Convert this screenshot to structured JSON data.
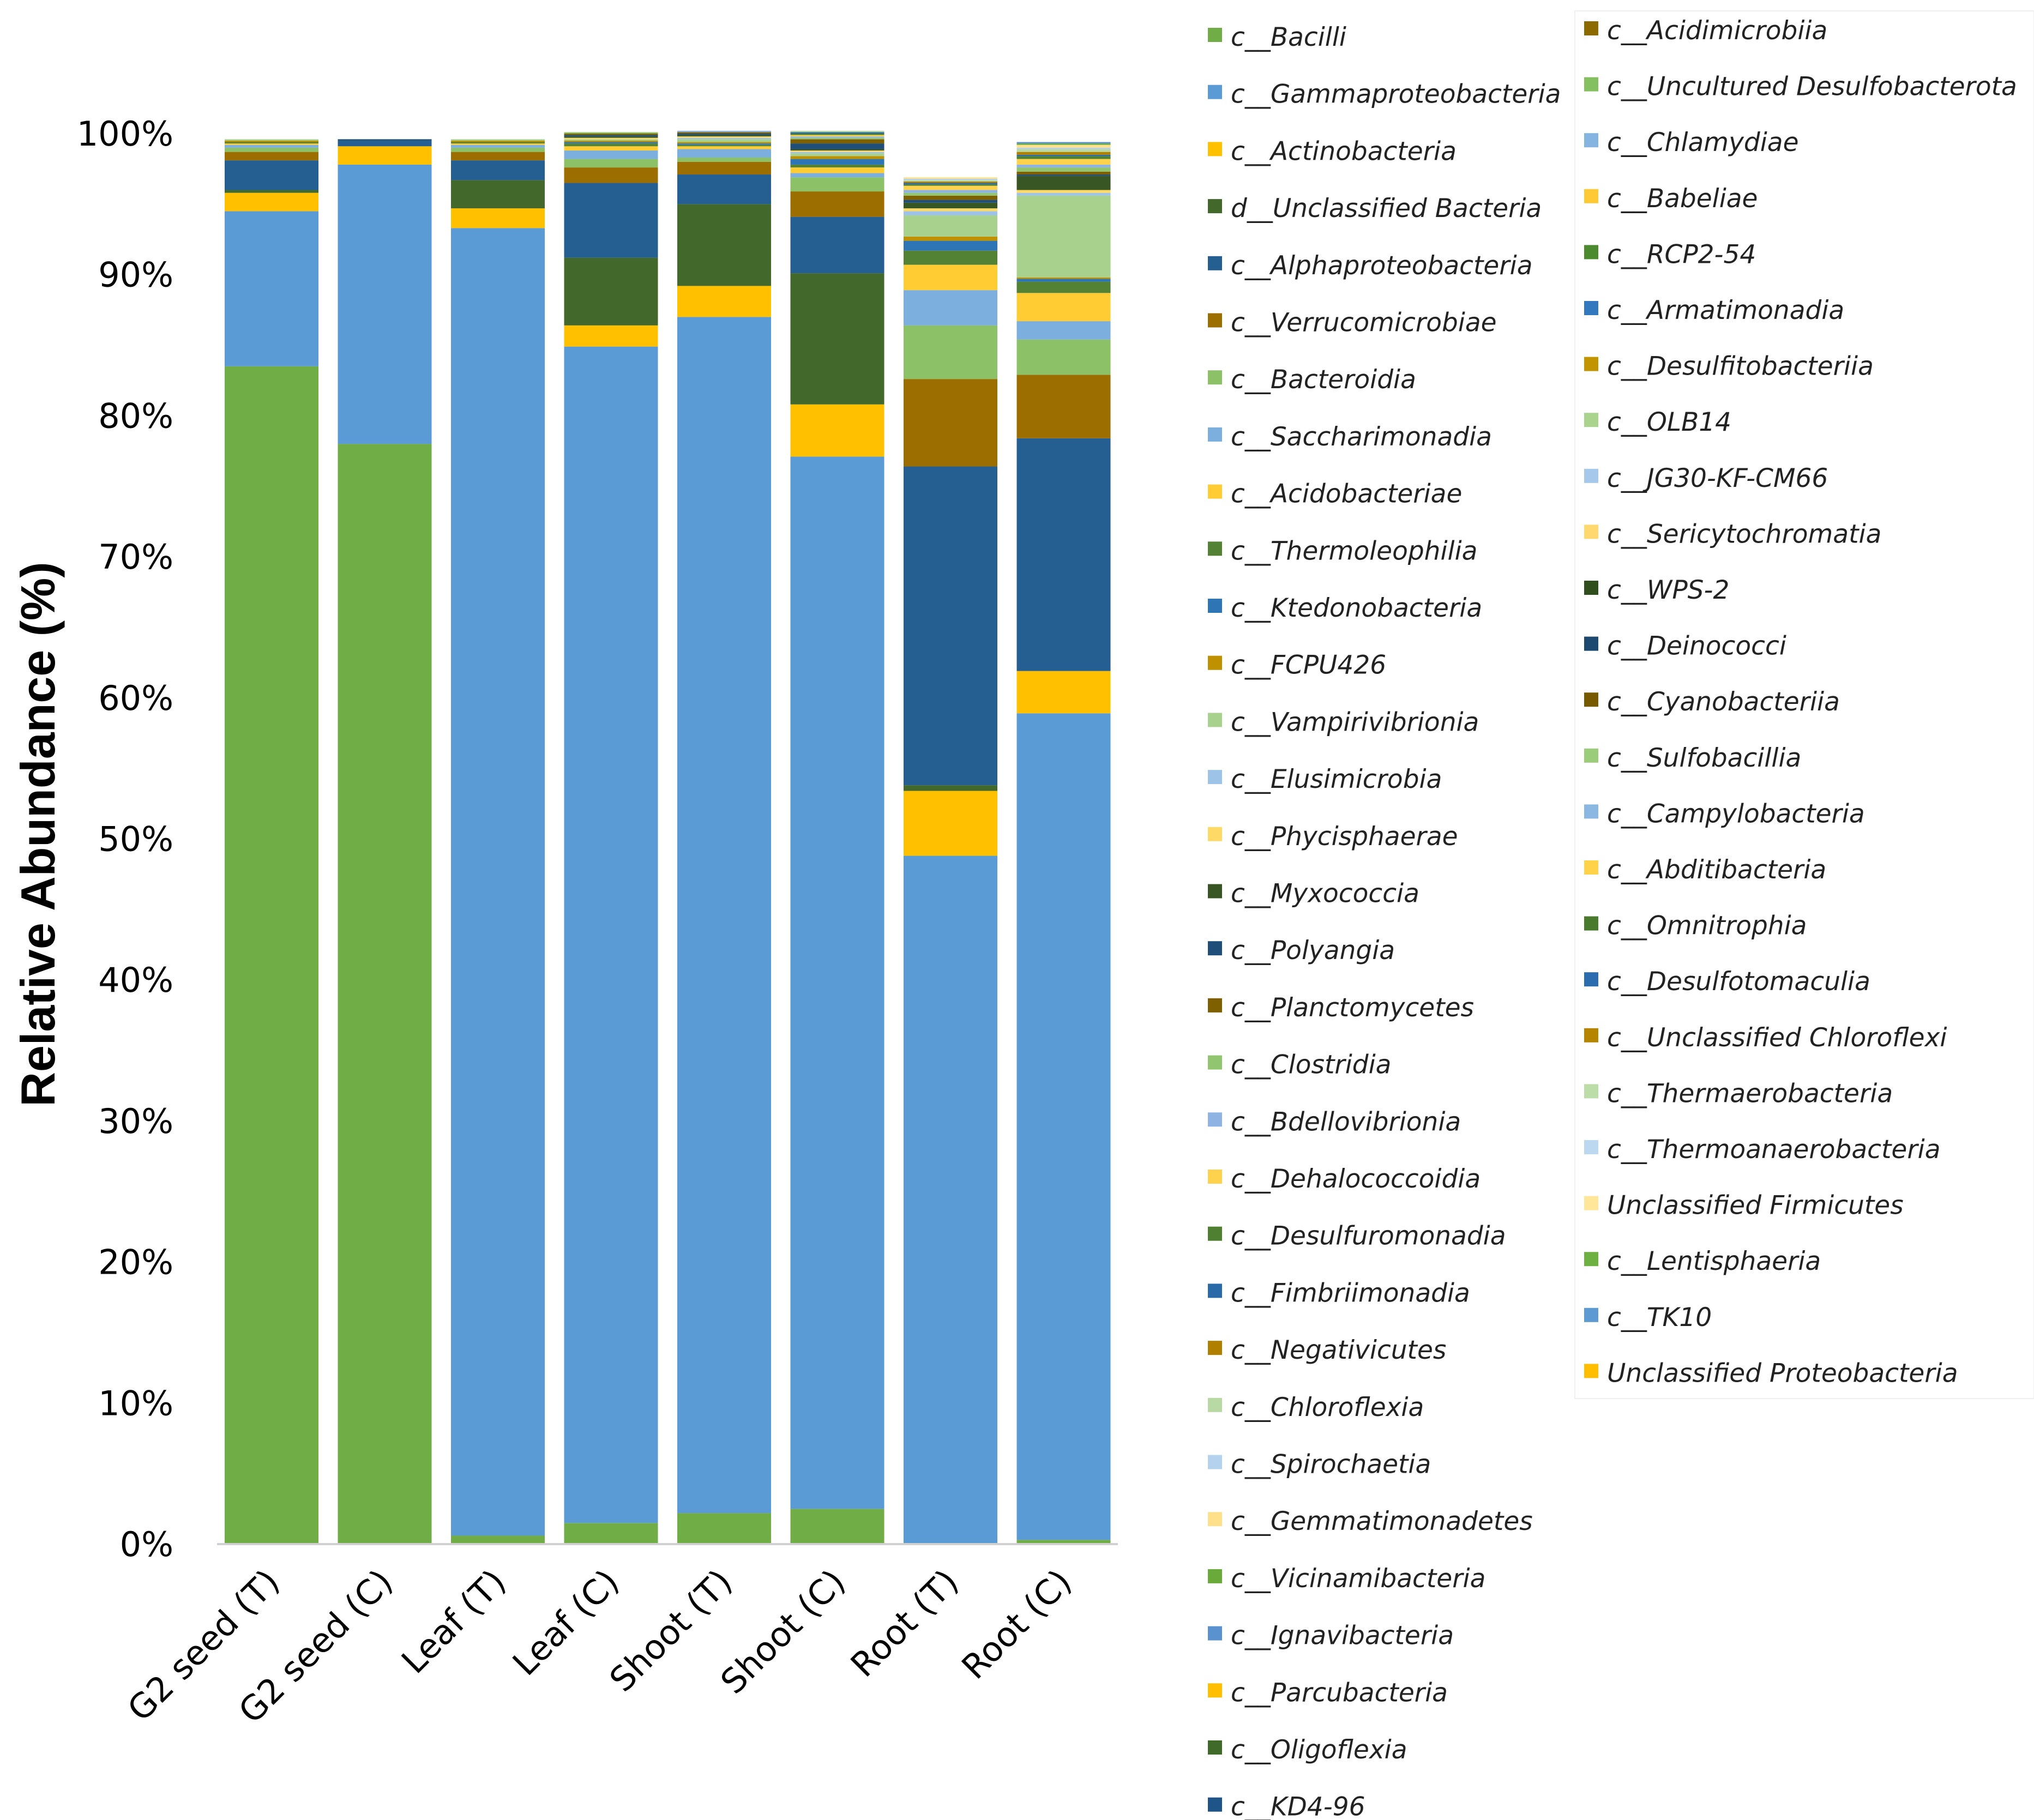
{
  "chart_data": {
    "type": "bar",
    "stacked": true,
    "ylabel": "Relative Abundance (%)",
    "ylim": [
      0,
      100
    ],
    "yticks": [
      "0%",
      "10%",
      "20%",
      "30%",
      "40%",
      "50%",
      "60%",
      "70%",
      "80%",
      "90%",
      "100%"
    ],
    "categories": [
      "G2 seed (T)",
      "G2 seed (C)",
      "Leaf (T)",
      "Leaf (C)",
      "Shoot (T)",
      "Shoot (C)",
      "Root (T)",
      "Root (C)"
    ],
    "series": [
      {
        "name": "c__Bacilli",
        "color": "#70ad47",
        "values": [
          83.5,
          78.0,
          0.6,
          1.5,
          2.2,
          2.5,
          0,
          0.3
        ]
      },
      {
        "name": "c__Gammaproteobacteria",
        "color": "#5b9bd5",
        "values": [
          11.0,
          19.8,
          92.7,
          83.4,
          84.8,
          74.6,
          48.8,
          58.6
        ]
      },
      {
        "name": "c__Actinobacteria",
        "color": "#ffc000",
        "values": [
          1.3,
          1.3,
          1.4,
          1.5,
          2.2,
          3.7,
          4.6,
          3.0
        ]
      },
      {
        "name": "d__Unclassified Bacteria",
        "color": "#43682b",
        "values": [
          0.2,
          0,
          2.0,
          4.8,
          5.8,
          9.3,
          0.4,
          0
        ]
      },
      {
        "name": "c__Alphaproteobacteria",
        "color": "#255e91",
        "values": [
          2.1,
          0.4,
          1.4,
          5.3,
          2.1,
          4.0,
          22.6,
          16.5
        ]
      },
      {
        "name": "c__Verrucomicrobiae",
        "color": "#9c6e00",
        "values": [
          0.6,
          0,
          0.6,
          1.1,
          0.9,
          1.8,
          6.2,
          4.5
        ]
      },
      {
        "name": "c__Bacteroidia",
        "color": "#8cc168",
        "values": [
          0.3,
          0,
          0.3,
          0.6,
          0.3,
          1.0,
          3.8,
          2.5
        ]
      },
      {
        "name": "c__Saccharimonadia",
        "color": "#7cafdd",
        "values": [
          0.2,
          0,
          0.2,
          0.6,
          0.6,
          0.3,
          2.5,
          1.3
        ]
      },
      {
        "name": "c__Acidobacteriae",
        "color": "#ffcd33",
        "values": [
          0.1,
          0,
          0.1,
          0.3,
          0.2,
          0.4,
          1.8,
          2.0
        ]
      },
      {
        "name": "c__Thermoleophilia",
        "color": "#548235",
        "values": [
          0.1,
          0,
          0.1,
          0.2,
          0.1,
          0.2,
          1.0,
          0.8
        ]
      },
      {
        "name": "c__Ktedonobacteria",
        "color": "#2e75b6",
        "values": [
          0,
          0,
          0,
          0.1,
          0.1,
          0.4,
          0.7,
          0.2
        ]
      },
      {
        "name": "c__FCPU426",
        "color": "#bf9000",
        "values": [
          0.1,
          0,
          0.1,
          0.1,
          0.1,
          0.2,
          0.3,
          0.1
        ]
      },
      {
        "name": "c__Vampirivibrionia",
        "color": "#a9d18e",
        "values": [
          0.1,
          0,
          0.1,
          0.1,
          0.2,
          0.2,
          1.5,
          5.8
        ]
      },
      {
        "name": "c__Elusimicrobia",
        "color": "#9dc3e6",
        "values": [
          0,
          0,
          0,
          0,
          0.1,
          0.1,
          0.3,
          0.2
        ]
      },
      {
        "name": "c__Phycisphaerae",
        "color": "#ffd966",
        "values": [
          0,
          0,
          0,
          0.1,
          0.1,
          0.1,
          0.2,
          0.2
        ]
      },
      {
        "name": "c__Myxococcia",
        "color": "#375623",
        "values": [
          0,
          0,
          0,
          0.1,
          0.1,
          0.1,
          0.4,
          1.0
        ]
      },
      {
        "name": "c__Polyangia",
        "color": "#1f4e79",
        "values": [
          0,
          0.1,
          0,
          0.1,
          0.1,
          0.4,
          0.2,
          0.1
        ]
      },
      {
        "name": "c__Planctomycetes",
        "color": "#7f6000",
        "values": [
          0,
          0,
          0,
          0.1,
          0.1,
          0.3,
          0.3,
          0.2
        ]
      },
      {
        "name": "c__Clostridia",
        "color": "#92c56f",
        "values": [
          0,
          0,
          0,
          0.1,
          0,
          0.1,
          0.2,
          0.3
        ]
      },
      {
        "name": "c__Bdellovibrionia",
        "color": "#8fb4e3",
        "values": [
          0,
          0,
          0,
          0,
          0.1,
          0.1,
          0.2,
          0.2
        ]
      },
      {
        "name": "c__Dehalococcoidia",
        "color": "#ffd24d",
        "values": [
          0,
          0,
          0,
          0,
          0,
          0.1,
          0.3,
          0.4
        ]
      },
      {
        "name": "c__Desulfuromonadia",
        "color": "#4f7f31",
        "values": [
          0,
          0,
          0,
          0,
          0,
          0.1,
          0.1,
          0.2
        ]
      },
      {
        "name": "c__Fimbriimonadia",
        "color": "#2a6aa8",
        "values": [
          0,
          0,
          0,
          0,
          0,
          0.1,
          0.1,
          0.1
        ]
      },
      {
        "name": "c__Negativicutes",
        "color": "#b07f00",
        "values": [
          0,
          0,
          0,
          0,
          0,
          0,
          0.1,
          0.2
        ]
      },
      {
        "name": "c__Chloroflexia",
        "color": "#b8d9a3",
        "values": [
          0,
          0,
          0,
          0,
          0,
          0.1,
          0.1,
          0.2
        ]
      },
      {
        "name": "c__Spirochaetia",
        "color": "#b4d2ee",
        "values": [
          0,
          0,
          0,
          0,
          0,
          0,
          0.1,
          0.1
        ]
      },
      {
        "name": "c__Gemmatimonadetes",
        "color": "#ffe08a",
        "values": [
          0,
          0,
          0,
          0,
          0,
          0,
          0.1,
          0.2
        ]
      },
      {
        "name": "c__Vicinamibacteria",
        "color": "#6aaa3a",
        "values": [
          0,
          0,
          0,
          0,
          0,
          0,
          0,
          0.1
        ]
      },
      {
        "name": "c__Ignavibacteria",
        "color": "#5a92cf",
        "values": [
          0,
          0,
          0,
          0,
          0,
          0,
          0,
          0.1
        ]
      },
      {
        "name": "c__Parcubacteria",
        "color": "#ffbf00",
        "values": [
          0,
          0,
          0,
          0,
          0,
          0,
          0,
          0
        ]
      },
      {
        "name": "c__Oligoflexia",
        "color": "#3f6a2a",
        "values": [
          0,
          0,
          0,
          0,
          0,
          0,
          0,
          0
        ]
      },
      {
        "name": "c__KD4-96",
        "color": "#1f5488",
        "values": [
          0,
          0,
          0,
          0,
          0,
          0,
          0,
          0
        ]
      },
      {
        "name": "c__Acidimicrobiia",
        "color": "#8c6a00",
        "values": [
          0,
          0,
          0,
          0,
          0,
          0,
          0,
          0
        ]
      },
      {
        "name": "c__Uncultured Desulfobacterota",
        "color": "#84c060",
        "values": [
          0,
          0,
          0,
          0,
          0,
          0,
          0,
          0
        ]
      },
      {
        "name": "c__Chlamydiae",
        "color": "#86b4e0",
        "values": [
          0,
          0,
          0,
          0,
          0,
          0,
          0,
          0
        ]
      },
      {
        "name": "c__Babeliae",
        "color": "#ffc935",
        "values": [
          0,
          0,
          0,
          0,
          0,
          0,
          0,
          0
        ]
      },
      {
        "name": "c__RCP2-54",
        "color": "#4c8a30",
        "values": [
          0,
          0,
          0,
          0,
          0,
          0,
          0,
          0
        ]
      },
      {
        "name": "c__Armatimonadia",
        "color": "#3278be",
        "values": [
          0,
          0,
          0,
          0,
          0,
          0,
          0,
          0
        ]
      },
      {
        "name": "c__Desulfitobacteriia",
        "color": "#c29400",
        "values": [
          0,
          0,
          0,
          0,
          0,
          0,
          0,
          0
        ]
      },
      {
        "name": "c__OLB14",
        "color": "#aad48e",
        "values": [
          0,
          0,
          0,
          0,
          0,
          0,
          0,
          0
        ]
      },
      {
        "name": "c__JG30-KF-CM66",
        "color": "#a6c8ea",
        "values": [
          0,
          0,
          0,
          0,
          0,
          0,
          0,
          0
        ]
      },
      {
        "name": "c__Sericytochromatia",
        "color": "#ffd870",
        "values": [
          0,
          0,
          0,
          0,
          0,
          0,
          0,
          0
        ]
      },
      {
        "name": "c__WPS-2",
        "color": "#304d1e",
        "values": [
          0,
          0,
          0,
          0,
          0,
          0,
          0,
          0
        ]
      },
      {
        "name": "c__Deinococci",
        "color": "#1d4870",
        "values": [
          0,
          0,
          0,
          0,
          0,
          0,
          0,
          0
        ]
      },
      {
        "name": "c__Cyanobacteriia",
        "color": "#775900",
        "values": [
          0,
          0,
          0,
          0,
          0,
          0,
          0,
          0
        ]
      },
      {
        "name": "c__Sulfobacillia",
        "color": "#9bcc7a",
        "values": [
          0,
          0,
          0,
          0,
          0,
          0,
          0,
          0
        ]
      },
      {
        "name": "c__Campylobacteria",
        "color": "#8ab8e2",
        "values": [
          0,
          0,
          0,
          0,
          0,
          0,
          0,
          0
        ]
      },
      {
        "name": "c__Abditibacteria",
        "color": "#ffd24a",
        "values": [
          0,
          0,
          0,
          0,
          0,
          0,
          0,
          0
        ]
      },
      {
        "name": "c__Omnitrophia",
        "color": "#497a2e",
        "values": [
          0,
          0,
          0,
          0,
          0,
          0,
          0,
          0
        ]
      },
      {
        "name": "c__Desulfotomaculia",
        "color": "#2b6cae",
        "values": [
          0,
          0,
          0,
          0,
          0,
          0,
          0,
          0
        ]
      },
      {
        "name": "c__Unclassified Chloroflexi",
        "color": "#b58400",
        "values": [
          0,
          0,
          0,
          0,
          0,
          0,
          0,
          0
        ]
      },
      {
        "name": "c__Thermaerobacteria",
        "color": "#bcdca8",
        "values": [
          0,
          0,
          0,
          0,
          0,
          0,
          0,
          0
        ]
      },
      {
        "name": "c__Thermoanaerobacteria",
        "color": "#bcd8f0",
        "values": [
          0,
          0,
          0,
          0,
          0,
          0,
          0,
          0
        ]
      },
      {
        "name": "Unclassified Firmicutes",
        "color": "#ffe699",
        "values": [
          0,
          0,
          0,
          0,
          0,
          0,
          0,
          0
        ]
      },
      {
        "name": "c__Lentisphaeria",
        "color": "#6fb043",
        "values": [
          0,
          0,
          0,
          0,
          0,
          0,
          0,
          0
        ]
      },
      {
        "name": "c__TK10",
        "color": "#5d9ad4",
        "values": [
          0,
          0,
          0,
          0,
          0,
          0,
          0,
          0
        ]
      },
      {
        "name": "Unclassified Proteobacteria",
        "color": "#ffbe00",
        "values": [
          0,
          0,
          0,
          0,
          0,
          0,
          0,
          0
        ]
      }
    ]
  }
}
